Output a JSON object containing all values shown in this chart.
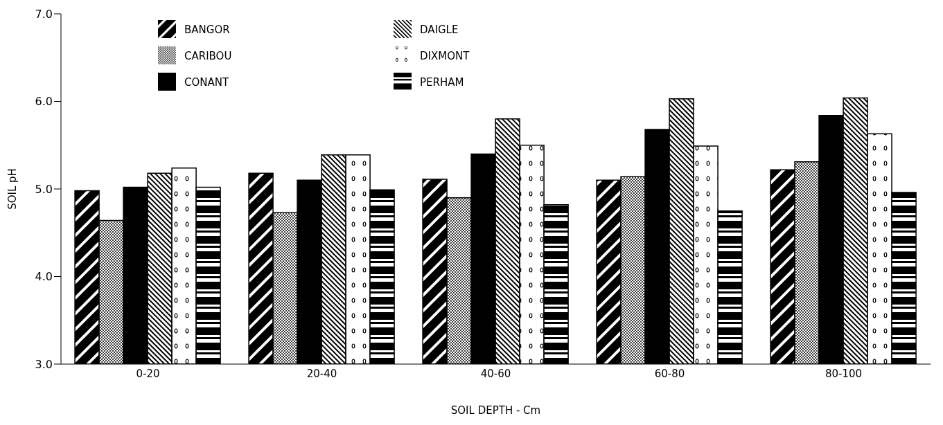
{
  "chart_data": {
    "type": "bar",
    "xlabel": "SOIL DEPTH - Cm",
    "ylabel": "SOIL pH",
    "categories": [
      "0-20",
      "20-40",
      "40-60",
      "60-80",
      "80-100"
    ],
    "series": [
      {
        "name": "BANGOR",
        "color": "#000000",
        "values": [
          4.98,
          5.18,
          5.11,
          5.1,
          5.22
        ]
      },
      {
        "name": "CARIBOU",
        "color": "#000000",
        "values": [
          4.64,
          4.73,
          4.9,
          5.14,
          5.31
        ]
      },
      {
        "name": "CONANT",
        "color": "#000000",
        "values": [
          5.02,
          5.1,
          5.4,
          5.68,
          5.84
        ]
      },
      {
        "name": "DAIGLE",
        "color": "#000000",
        "values": [
          5.18,
          5.39,
          5.8,
          6.03,
          6.04
        ]
      },
      {
        "name": "DIXMONT",
        "color": "#000000",
        "values": [
          5.24,
          5.39,
          5.5,
          5.49,
          5.63
        ]
      },
      {
        "name": "PERHAM",
        "color": "#000000",
        "values": [
          5.02,
          4.99,
          4.82,
          4.75,
          4.96
        ]
      }
    ],
    "ylim": [
      3,
      7
    ],
    "yticks": [
      {
        "value": 3,
        "label": "3.0"
      },
      {
        "value": 4,
        "label": "4.0"
      },
      {
        "value": 5,
        "label": "5.0"
      },
      {
        "value": 6,
        "label": "6.0"
      },
      {
        "value": 7,
        "label": "7.0"
      }
    ],
    "grid": false,
    "legend": "top left"
  }
}
